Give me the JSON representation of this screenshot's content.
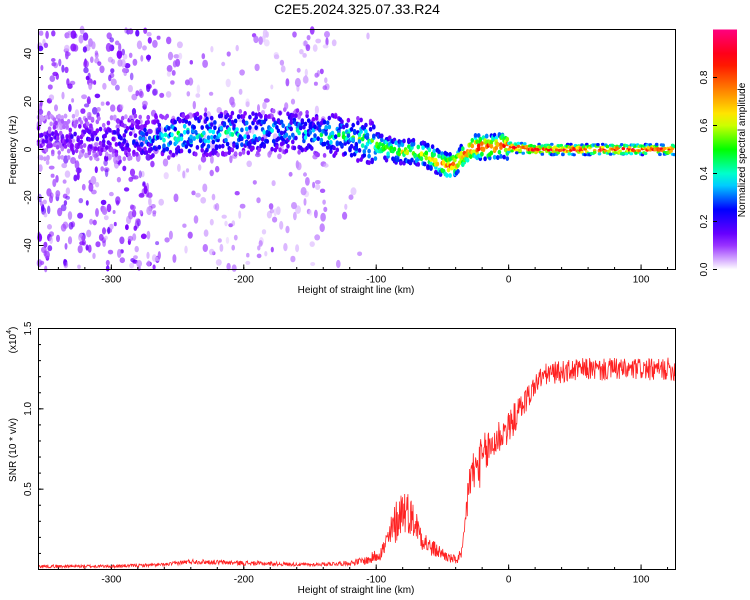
{
  "title": "C2E5.2024.325.07.33.R24",
  "chart_data": [
    {
      "type": "heatmap",
      "name": "spectrogram",
      "xlabel": "Height of straight line (km)",
      "ylabel": "Frequency (Hz)",
      "xlim": [
        -355,
        126
      ],
      "ylim": [
        -50,
        50
      ],
      "x_ticks": [
        -300,
        -200,
        -100,
        0,
        100
      ],
      "y_ticks": [
        -40,
        -20,
        0,
        20,
        40
      ],
      "colorbar": {
        "label": "Normalized spectral amplitude",
        "range": [
          0,
          1
        ],
        "ticks": [
          0.0,
          0.2,
          0.4,
          0.6,
          0.8
        ],
        "tick_labels": [
          "0.0",
          "0.2",
          "0.4",
          "0.6",
          "0.8"
        ],
        "colors": [
          "#ffffff",
          "#7f00ff",
          "#0000ff",
          "#00ffff",
          "#00ff00",
          "#ffff00",
          "#ff7f00",
          "#ff0000",
          "#ff007f"
        ]
      },
      "ridge": {
        "x": [
          -350,
          -300,
          -265,
          -250,
          -200,
          -170,
          -140,
          -120,
          -110,
          -100,
          -90,
          -80,
          -70,
          -60,
          -50,
          -45,
          -40,
          -35,
          -30,
          -25,
          -20,
          -10,
          -5,
          0,
          20,
          50,
          80,
          110,
          126
        ],
        "y": [
          5,
          5,
          5,
          6,
          7,
          8,
          6,
          5,
          4,
          2,
          0,
          -1,
          -1,
          -3,
          -6,
          -7,
          -6,
          -3,
          0,
          1,
          1,
          1,
          2,
          1,
          0,
          0,
          0,
          0,
          0
        ],
        "amplitude": [
          0.15,
          0.2,
          0.35,
          0.45,
          0.4,
          0.35,
          0.4,
          0.45,
          0.5,
          0.55,
          0.55,
          0.6,
          0.6,
          0.65,
          0.75,
          0.8,
          0.8,
          0.75,
          0.85,
          0.85,
          0.85,
          0.85,
          0.85,
          0.9,
          0.9,
          0.9,
          0.9,
          0.9,
          0.9
        ]
      }
    },
    {
      "type": "line",
      "name": "snr",
      "xlabel": "Height of straight line (km)",
      "ylabel": "SNR (10 * v/v)",
      "y_scale_label": "(x10^4)",
      "scale_base": "(x10",
      "scale_exp": "4",
      "scale_close": ")",
      "xlim": [
        -355,
        126
      ],
      "ylim": [
        0,
        1.5
      ],
      "x_ticks": [
        -300,
        -200,
        -100,
        0,
        100
      ],
      "y_ticks": [
        0.5,
        1.0,
        1.5
      ],
      "y_tick_labels": [
        "0.5",
        "1.0",
        "1.5"
      ],
      "color": "#ff2222",
      "x": [
        -355,
        -300,
        -260,
        -240,
        -200,
        -150,
        -120,
        -105,
        -95,
        -90,
        -85,
        -80,
        -75,
        -70,
        -65,
        -60,
        -55,
        -50,
        -45,
        -40,
        -35,
        -32,
        -30,
        -27,
        -25,
        -20,
        -15,
        -10,
        -5,
        0,
        5,
        10,
        15,
        20,
        25,
        30,
        40,
        50,
        60,
        70,
        80,
        90,
        100,
        110,
        120,
        126
      ],
      "y": [
        0.02,
        0.02,
        0.03,
        0.05,
        0.04,
        0.03,
        0.04,
        0.06,
        0.12,
        0.2,
        0.3,
        0.38,
        0.35,
        0.28,
        0.2,
        0.14,
        0.12,
        0.1,
        0.07,
        0.06,
        0.09,
        0.35,
        0.55,
        0.6,
        0.62,
        0.68,
        0.75,
        0.8,
        0.85,
        0.88,
        0.95,
        1.02,
        1.08,
        1.15,
        1.2,
        1.22,
        1.23,
        1.24,
        1.25,
        1.24,
        1.25,
        1.24,
        1.25,
        1.24,
        1.25,
        1.24
      ],
      "noise": [
        0.01,
        0.01,
        0.01,
        0.015,
        0.015,
        0.01,
        0.015,
        0.03,
        0.06,
        0.1,
        0.14,
        0.15,
        0.13,
        0.1,
        0.08,
        0.06,
        0.05,
        0.04,
        0.03,
        0.03,
        0.05,
        0.12,
        0.14,
        0.15,
        0.15,
        0.15,
        0.14,
        0.12,
        0.12,
        0.1,
        0.1,
        0.08,
        0.08,
        0.07,
        0.07,
        0.07,
        0.07,
        0.07,
        0.07,
        0.07,
        0.07,
        0.07,
        0.07,
        0.07,
        0.07,
        0.07
      ]
    }
  ]
}
